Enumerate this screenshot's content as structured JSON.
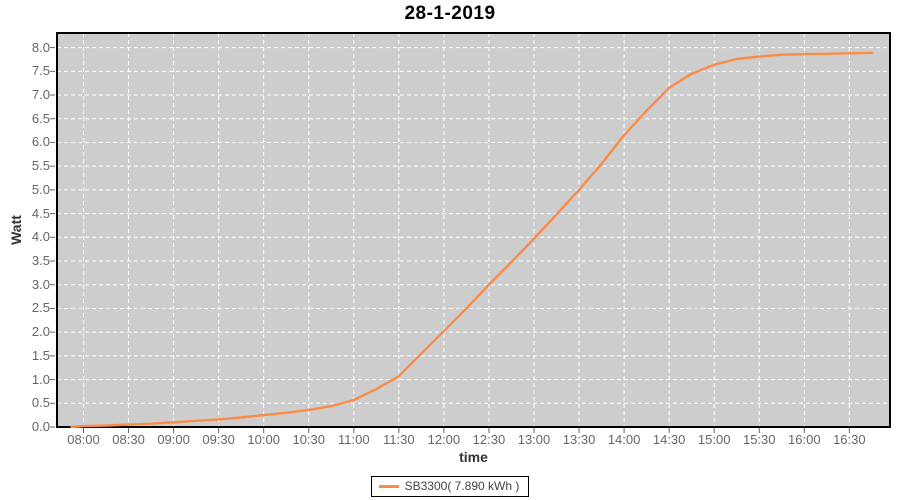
{
  "colors": {
    "series": "#FA8C48",
    "plot_bg": "#CDCDCD",
    "grid": "#FFFFFF",
    "border": "#000000",
    "tick_mark": "#666666",
    "tick_text": "#666666",
    "axis_label_text": "#333333",
    "title_text": "#000000",
    "legend_border": "#000000",
    "legend_bg": "#FFFFFF"
  },
  "chart_data": {
    "type": "line",
    "title": "28-1-2019",
    "xlabel": "time",
    "ylabel": "Watt",
    "ylim": [
      0.0,
      8.0
    ],
    "y_tick_step": 0.5,
    "grid": true,
    "legend_position": "bottom",
    "x_ticks": [
      "08:00",
      "08:30",
      "09:00",
      "09:30",
      "10:00",
      "10:30",
      "11:00",
      "11:30",
      "12:00",
      "12:30",
      "13:00",
      "13:30",
      "14:00",
      "14:30",
      "15:00",
      "15:30",
      "16:00",
      "16:30"
    ],
    "y_ticks": [
      "0.0",
      "0.5",
      "1.0",
      "1.5",
      "2.0",
      "2.5",
      "3.0",
      "3.5",
      "4.0",
      "4.5",
      "5.0",
      "5.5",
      "6.0",
      "6.5",
      "7.0",
      "7.5",
      "8.0"
    ],
    "series": [
      {
        "name": "SB3300( 7.890 kWh )",
        "color": "#FA8C48",
        "points": [
          [
            "07:52",
            0.0
          ],
          [
            "08:00",
            0.02
          ],
          [
            "08:15",
            0.03
          ],
          [
            "08:30",
            0.05
          ],
          [
            "08:45",
            0.07
          ],
          [
            "09:00",
            0.1
          ],
          [
            "09:15",
            0.13
          ],
          [
            "09:30",
            0.16
          ],
          [
            "09:45",
            0.2
          ],
          [
            "10:00",
            0.25
          ],
          [
            "10:15",
            0.3
          ],
          [
            "10:30",
            0.36
          ],
          [
            "10:45",
            0.44
          ],
          [
            "11:00",
            0.57
          ],
          [
            "11:15",
            0.8
          ],
          [
            "11:30",
            1.07
          ],
          [
            "11:45",
            1.55
          ],
          [
            "12:00",
            2.02
          ],
          [
            "12:15",
            2.5
          ],
          [
            "12:30",
            3.0
          ],
          [
            "12:45",
            3.48
          ],
          [
            "13:00",
            3.97
          ],
          [
            "13:15",
            4.48
          ],
          [
            "13:30",
            5.0
          ],
          [
            "13:45",
            5.55
          ],
          [
            "14:00",
            6.15
          ],
          [
            "14:15",
            6.67
          ],
          [
            "14:30",
            7.15
          ],
          [
            "14:45",
            7.45
          ],
          [
            "15:00",
            7.64
          ],
          [
            "15:15",
            7.76
          ],
          [
            "15:30",
            7.81
          ],
          [
            "15:45",
            7.85
          ],
          [
            "16:00",
            7.86
          ],
          [
            "16:15",
            7.87
          ],
          [
            "16:30",
            7.88
          ],
          [
            "16:45",
            7.89
          ]
        ]
      }
    ]
  }
}
